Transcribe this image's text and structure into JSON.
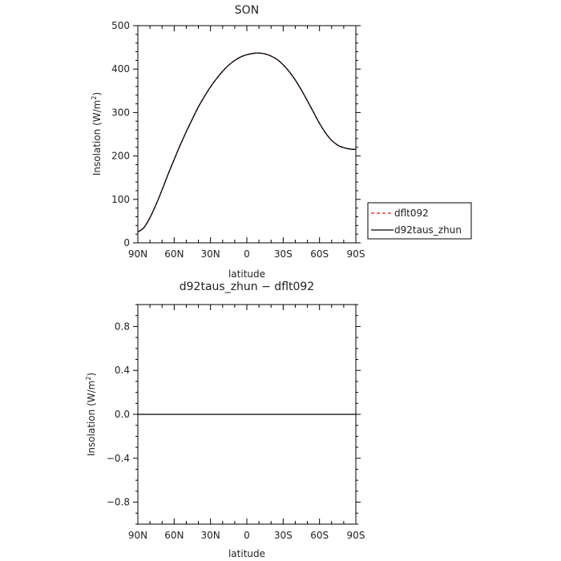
{
  "chart_data": [
    {
      "type": "line",
      "title": "SON",
      "xlabel": "latitude",
      "ylabel": "Insolation (W/m",
      "ylabel_sup": "2",
      "ylabel_close": ")",
      "x_ticks": [
        -90,
        -60,
        -30,
        0,
        30,
        60,
        90
      ],
      "x_tick_labels": [
        "90N",
        "60N",
        "30N",
        "0",
        "30S",
        "60S",
        "90S"
      ],
      "xlim": [
        -90,
        90
      ],
      "y_ticks": [
        0,
        100,
        200,
        300,
        400,
        500
      ],
      "y_tick_labels": [
        "0",
        "100",
        "200",
        "300",
        "400",
        "500"
      ],
      "ylim": [
        0,
        500
      ],
      "legend_position": "right",
      "x": [
        -90,
        -85,
        -80,
        -75,
        -70,
        -65,
        -60,
        -55,
        -50,
        -45,
        -40,
        -35,
        -30,
        -25,
        -20,
        -15,
        -10,
        -5,
        0,
        5,
        10,
        15,
        20,
        25,
        30,
        35,
        40,
        45,
        50,
        55,
        60,
        65,
        70,
        75,
        80,
        85,
        90
      ],
      "series": [
        {
          "name": "dflt092",
          "color": "#e41a1c",
          "dash": true,
          "values": [
            25,
            35,
            58,
            88,
            122,
            158,
            192,
            225,
            256,
            285,
            313,
            337,
            359,
            378,
            395,
            409,
            420,
            428,
            433,
            436,
            437,
            435,
            430,
            422,
            410,
            394,
            375,
            352,
            327,
            301,
            275,
            253,
            236,
            225,
            219,
            216,
            215
          ]
        },
        {
          "name": "d92taus_zhun",
          "color": "#000000",
          "dash": false,
          "values": [
            25,
            35,
            58,
            88,
            122,
            158,
            192,
            225,
            256,
            285,
            313,
            337,
            359,
            378,
            395,
            409,
            420,
            428,
            433,
            436,
            437,
            435,
            430,
            422,
            410,
            394,
            375,
            352,
            327,
            301,
            275,
            253,
            236,
            225,
            219,
            216,
            215
          ]
        }
      ]
    },
    {
      "type": "line",
      "title": "d92taus_zhun − dflt092",
      "xlabel": "latitude",
      "ylabel": "Insolation (W/m",
      "ylabel_sup": "2",
      "ylabel_close": ")",
      "x_ticks": [
        -90,
        -60,
        -30,
        0,
        30,
        60,
        90
      ],
      "x_tick_labels": [
        "90N",
        "60N",
        "30N",
        "0",
        "30S",
        "60S",
        "90S"
      ],
      "xlim": [
        -90,
        90
      ],
      "y_ticks": [
        -0.8,
        -0.4,
        0.0,
        0.4,
        0.8
      ],
      "y_tick_labels": [
        "−0.8",
        "−0.4",
        "0.0",
        "0.4",
        "0.8"
      ],
      "ylim": [
        -1,
        1
      ],
      "x": [
        -90,
        -60,
        -30,
        0,
        30,
        60,
        90
      ],
      "series": [
        {
          "color": "#000000",
          "dash": false,
          "values": [
            0,
            0,
            0,
            0,
            0,
            0,
            0
          ]
        }
      ]
    }
  ]
}
